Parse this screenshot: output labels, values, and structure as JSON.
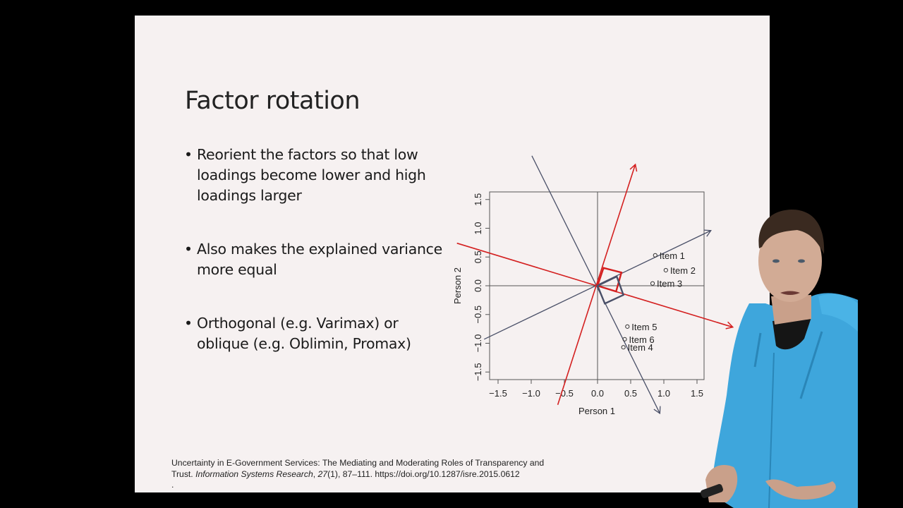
{
  "slide": {
    "title": "Factor rotation",
    "bullets": [
      {
        "text": "Reorient the factors so that low loadings become lower and high loadings larger"
      },
      {
        "text": "Also makes the explained variance more equal"
      },
      {
        "text": "Orthogonal (e.g. Varimax) or oblique (e.g. Oblimin, Promax)"
      }
    ],
    "bullet_glyph": "•",
    "citation": {
      "line1": "Uncertainty in E-Government Services: The Mediating and Moderating Roles of Transparency and",
      "line2_prefix": "Trust. ",
      "journal": "Information Systems Research",
      "line2_mid": ", ",
      "volume": "27",
      "line2_suffix": "(1), 87–111. https://doi.org/10.1287/isre.2015.0612",
      "line3": "."
    }
  },
  "colors": {
    "background": "#000000",
    "slide_bg": "#f6f1f1",
    "original_axes": "#4a5068",
    "rotated_axes": "#d42020",
    "hoodie": "#3ea6dc"
  },
  "chart_data": {
    "type": "scatter",
    "title": "",
    "xlabel": "Person 1",
    "ylabel": "Person 2",
    "xlim": [
      -1.65,
      1.6
    ],
    "ylim": [
      -1.63,
      1.63
    ],
    "xticks": [
      "-1.5",
      "-1.0",
      "-0.5",
      "0.0",
      "0.5",
      "1.0",
      "1.5"
    ],
    "yticks": [
      "-1.5",
      "-1.0",
      "-0.5",
      "0.0",
      "0.5",
      "1.0",
      "1.5"
    ],
    "xtick_values": [
      -1.5,
      -1.0,
      -0.5,
      0.0,
      0.5,
      1.0,
      1.5
    ],
    "ytick_values": [
      -1.5,
      -1.0,
      -0.5,
      0.0,
      0.5,
      1.0,
      1.5
    ],
    "grid": false,
    "reference_lines": {
      "x": 0,
      "y": 0
    },
    "points": [
      {
        "label": "Item 1",
        "x": 0.87,
        "y": 0.53
      },
      {
        "label": "Item 2",
        "x": 1.03,
        "y": 0.27
      },
      {
        "label": "Item 3",
        "x": 0.83,
        "y": 0.04
      },
      {
        "label": "Item 5",
        "x": 0.45,
        "y": -0.71
      },
      {
        "label": "Item 6",
        "x": 0.41,
        "y": -0.93
      },
      {
        "label": "Item 4",
        "x": 0.39,
        "y": -1.07
      }
    ],
    "axes_lines": [
      {
        "name": "original factor 1",
        "color": "#4a5068",
        "from": [
          -1.71,
          -0.93
        ],
        "to": [
          1.71,
          0.96
        ],
        "arrow": true
      },
      {
        "name": "original factor 2",
        "color": "#4a5068",
        "from": [
          -0.99,
          2.26
        ],
        "to": [
          0.94,
          -2.22
        ],
        "arrow": true
      },
      {
        "name": "rotated factor 1",
        "color": "#d42020",
        "from": [
          -0.6,
          -2.07
        ],
        "to": [
          0.57,
          2.11
        ],
        "arrow": true
      },
      {
        "name": "rotated factor 2",
        "color": "#d42020",
        "from": [
          -2.12,
          0.74
        ],
        "to": [
          2.04,
          -0.72
        ],
        "arrow": true
      }
    ],
    "right_angle_markers": [
      {
        "color": "#d42020",
        "corners": [
          [
            0,
            0
          ],
          [
            0.09,
            0.31
          ],
          [
            0.36,
            0.23
          ],
          [
            0.28,
            -0.1
          ]
        ]
      },
      {
        "color": "#4a5068",
        "corners": [
          [
            0,
            0
          ],
          [
            0.29,
            0.16
          ],
          [
            0.39,
            -0.16
          ],
          [
            0.11,
            -0.31
          ]
        ]
      }
    ]
  }
}
